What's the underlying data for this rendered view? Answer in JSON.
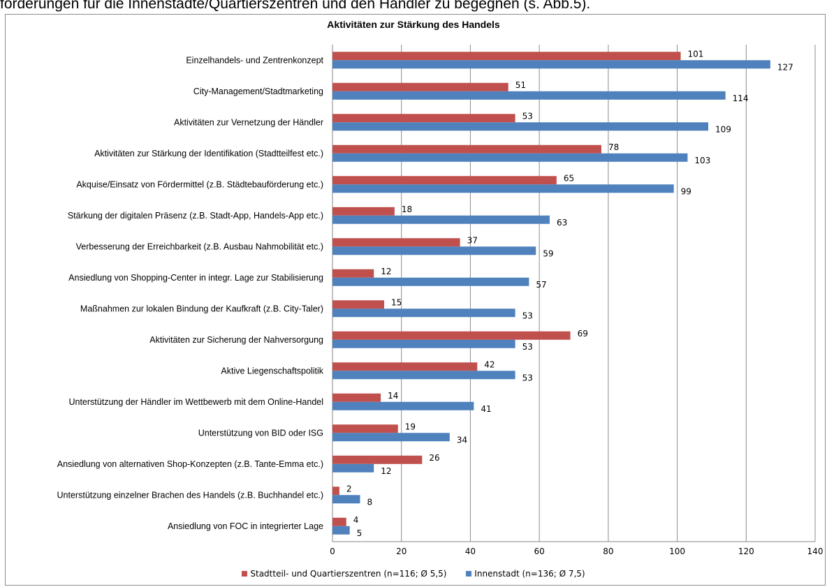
{
  "intro_text": "forderungen für die Innenstädte/Quartierszentren und den Händler zu begegnen (s. Abb.5).",
  "chart_data": {
    "type": "bar",
    "orientation": "horizontal",
    "title": "Aktivitäten zur Stärkung des Handels",
    "categories": [
      "Einzelhandels- und Zentrenkonzept",
      "City-Management/Stadtmarketing",
      "Aktivitäten zur Vernetzung der Händler",
      "Aktivitäten zur Stärkung der Identifikation (Stadtteilfest etc.)",
      "Akquise/Einsatz von Fördermittel (z.B. Städtebauförderung etc.)",
      "Stärkung der digitalen Präsenz (z.B. Stadt-App, Handels-App etc.)",
      "Verbesserung der Erreichbarkeit (z.B. Ausbau Nahmobilität etc.)",
      "Ansiedlung von Shopping-Center in integr. Lage zur Stabilisierung",
      "Maßnahmen zur lokalen Bindung der Kaufkraft (z.B. City-Taler)",
      "Aktivitäten zur Sicherung der Nahversorgung",
      "Aktive Liegenschaftspolitik",
      "Unterstützung der Händler im Wettbewerb mit dem Online-Handel",
      "Unterstützung von BID oder ISG",
      "Ansiedlung von alternativen Shop-Konzepten (z.B. Tante-Emma etc.)",
      "Unterstützung einzelner Brachen des Handels (z.B. Buchhandel etc.)",
      "Ansiedlung von FOC in integrierter Lage"
    ],
    "series": [
      {
        "name": "Stadtteil- und Quartierszentren (n=116; Ø 5,5)",
        "color": "#c0504d",
        "values": [
          101,
          51,
          53,
          78,
          65,
          18,
          37,
          12,
          15,
          69,
          42,
          14,
          19,
          26,
          2,
          4
        ]
      },
      {
        "name": "Innenstadt (n=136; Ø 7,5)",
        "color": "#4f81bd",
        "values": [
          127,
          114,
          109,
          103,
          99,
          63,
          59,
          57,
          53,
          53,
          53,
          41,
          34,
          12,
          8,
          5
        ]
      }
    ],
    "xlim": [
      0,
      140
    ],
    "xticks": [
      0,
      20,
      40,
      60,
      80,
      100,
      120,
      140
    ],
    "grid": true,
    "legend_position": "bottom"
  }
}
